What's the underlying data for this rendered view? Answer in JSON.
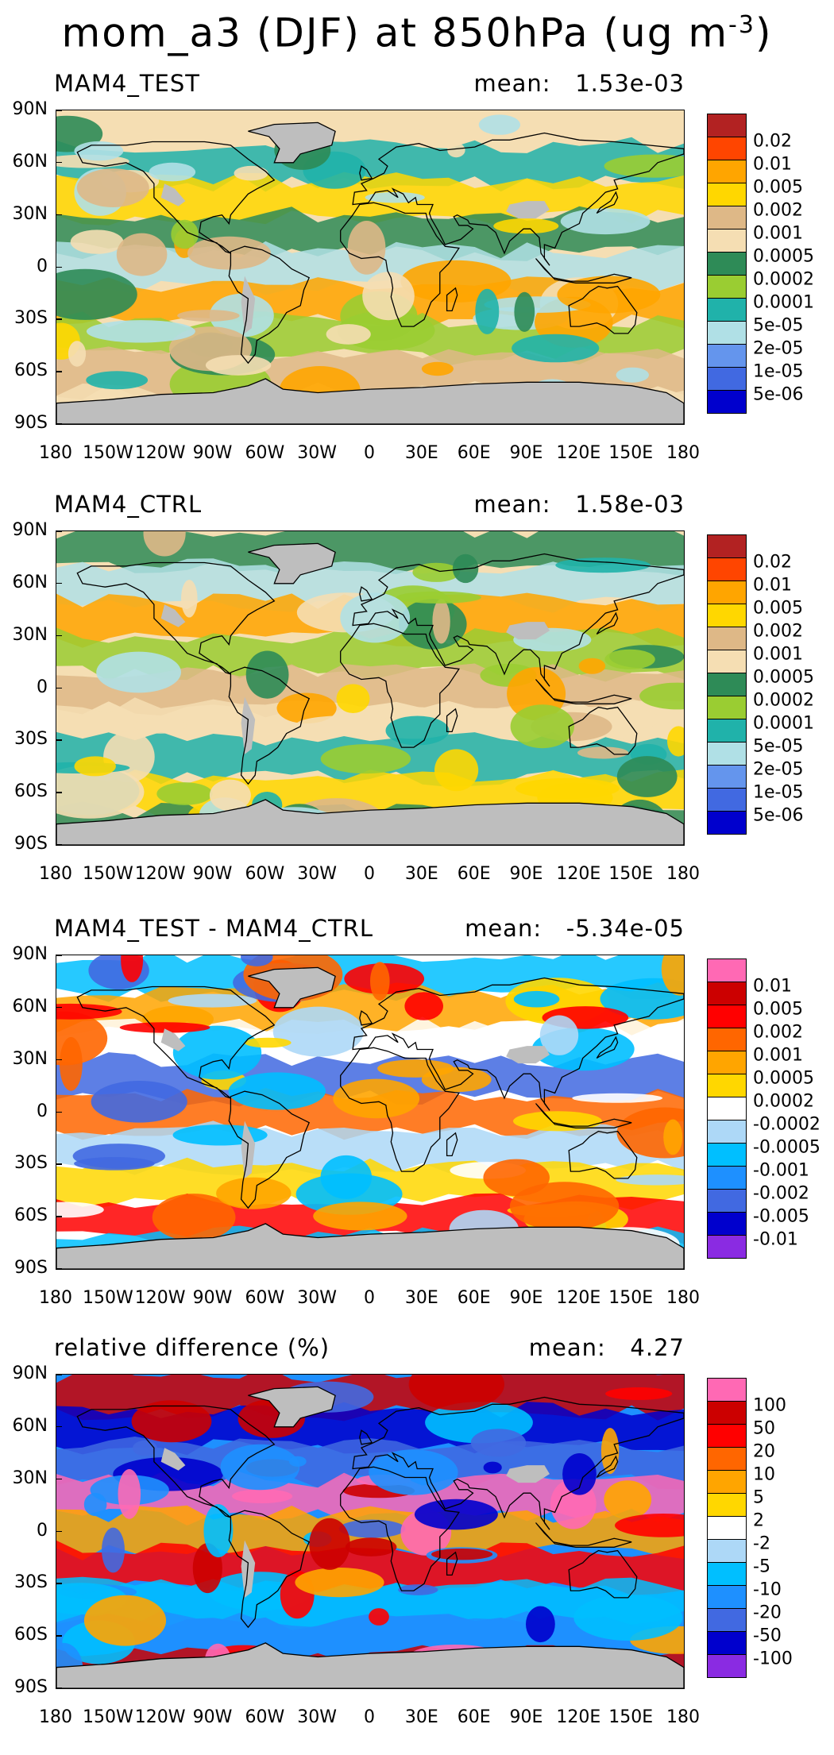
{
  "title": {
    "main": "mom_a3 (DJF) at 850hPa (ug m",
    "sup": "-3",
    "close": ")"
  },
  "axes": {
    "lat_labels": [
      "90N",
      "60N",
      "30N",
      "0",
      "30S",
      "60S",
      "90S"
    ],
    "lon_labels": [
      "180",
      "150W",
      "120W",
      "90W",
      "60W",
      "30W",
      "0",
      "30E",
      "60E",
      "90E",
      "120E",
      "150E",
      "180"
    ]
  },
  "panels": [
    {
      "name": "MAM4_TEST",
      "mean_label": "mean:",
      "mean_value": "1.53e-03",
      "colorbar": {
        "labels": [
          "0.02",
          "0.01",
          "0.005",
          "0.002",
          "0.001",
          "0.0005",
          "0.0002",
          "0.0001",
          "5e-05",
          "2e-05",
          "1e-05",
          "5e-06"
        ],
        "colors": [
          "#b22222",
          "#ff4500",
          "#ffa500",
          "#ffd700",
          "#deb887",
          "#f5deb3",
          "#2e8b57",
          "#9acd32",
          "#20b2aa",
          "#b0e0e6",
          "#6495ed",
          "#4169e1",
          "#0000cd"
        ]
      },
      "field_colors": [
        "#f5deb3",
        "#2e8b57",
        "#9acd32",
        "#20b2aa",
        "#b0e0e6",
        "#deb887",
        "#ffd700",
        "#ffa500"
      ]
    },
    {
      "name": "MAM4_CTRL",
      "mean_label": "mean:",
      "mean_value": "1.58e-03",
      "colorbar": {
        "labels": [
          "0.02",
          "0.01",
          "0.005",
          "0.002",
          "0.001",
          "0.0005",
          "0.0002",
          "0.0001",
          "5e-05",
          "2e-05",
          "1e-05",
          "5e-06"
        ],
        "colors": [
          "#b22222",
          "#ff4500",
          "#ffa500",
          "#ffd700",
          "#deb887",
          "#f5deb3",
          "#2e8b57",
          "#9acd32",
          "#20b2aa",
          "#b0e0e6",
          "#6495ed",
          "#4169e1",
          "#0000cd"
        ]
      },
      "field_colors": [
        "#f5deb3",
        "#2e8b57",
        "#9acd32",
        "#20b2aa",
        "#b0e0e6",
        "#deb887",
        "#ffd700",
        "#ffa500"
      ]
    },
    {
      "name": "MAM4_TEST - MAM4_CTRL",
      "mean_label": "mean:",
      "mean_value": "-5.34e-05",
      "colorbar": {
        "labels": [
          "0.01",
          "0.005",
          "0.002",
          "0.001",
          "0.0005",
          "0.0002",
          "-0.0002",
          "-0.0005",
          "-0.001",
          "-0.002",
          "-0.005",
          "-0.01"
        ],
        "colors": [
          "#ff69b4",
          "#cc0000",
          "#ff0000",
          "#ff6600",
          "#ffa500",
          "#ffd700",
          "#ffffff",
          "#add8f7",
          "#00bfff",
          "#1e90ff",
          "#4169e1",
          "#0000cd",
          "#8a2be2"
        ]
      },
      "field_colors": [
        "#ffffff",
        "#add8f7",
        "#00bfff",
        "#4169e1",
        "#ffd700",
        "#ffa500",
        "#ff6600",
        "#ff0000"
      ]
    },
    {
      "name": "relative difference (%)",
      "mean_label": "mean:",
      "mean_value": "4.27",
      "colorbar": {
        "labels": [
          "100",
          "50",
          "20",
          "10",
          "5",
          "2",
          "-2",
          "-5",
          "-10",
          "-20",
          "-50",
          "-100"
        ],
        "colors": [
          "#ff69b4",
          "#cc0000",
          "#ff0000",
          "#ff6600",
          "#ffa500",
          "#ffd700",
          "#ffffff",
          "#add8f7",
          "#00bfff",
          "#1e90ff",
          "#4169e1",
          "#0000cd",
          "#8a2be2"
        ]
      },
      "field_colors": [
        "#1e90ff",
        "#4169e1",
        "#ff0000",
        "#cc0000",
        "#ff69b4",
        "#00bfff",
        "#0000cd",
        "#ffa500"
      ]
    }
  ],
  "land_mask_color": "#bebebe"
}
